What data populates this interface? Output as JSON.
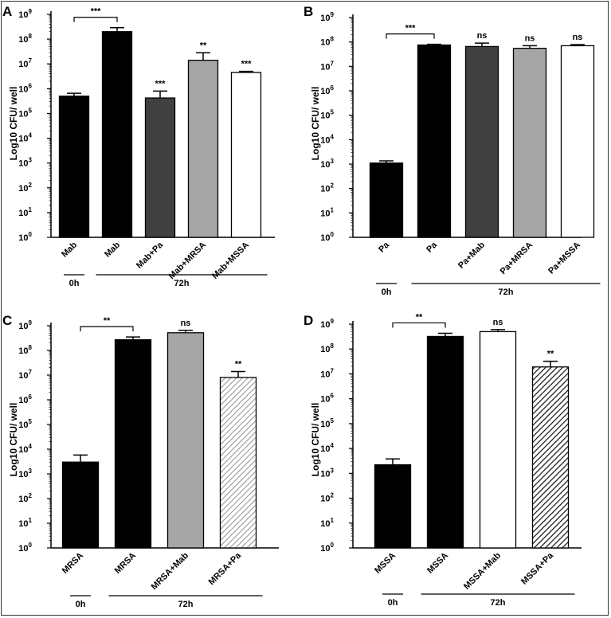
{
  "colors": {
    "black": "#000000",
    "darkgray": "#404040",
    "lightgray": "#a6a6a6",
    "white": "#ffffff"
  },
  "chart_data": [
    {
      "panel": "A",
      "type": "bar",
      "scale": "log10",
      "ylabel": "Log10 CFU/ well",
      "ylim": [
        1,
        1000000000
      ],
      "ytick_exponents": [
        0,
        1,
        2,
        3,
        4,
        5,
        6,
        7,
        8,
        9
      ],
      "categories": [
        "Mab",
        "Mab",
        "Mab+Pa",
        "Mab+MRSA",
        "Mab+MSSA"
      ],
      "values": [
        500000,
        200000000,
        420000,
        14000000,
        4500000
      ],
      "errors": [
        650000,
        290000000,
        800000,
        28000000,
        5000000
      ],
      "fills": [
        "black",
        "black",
        "darkgray",
        "lightgray",
        "white"
      ],
      "significance": [
        "",
        "***",
        "***",
        "**",
        "***"
      ],
      "groups": [
        {
          "label": "0h",
          "from": 0,
          "to": 0
        },
        {
          "label": "72h",
          "from": 1,
          "to": 4
        }
      ]
    },
    {
      "panel": "B",
      "type": "bar",
      "scale": "log10",
      "ylabel": "Log10 CFU/ well",
      "ylim": [
        1,
        1000000000
      ],
      "ytick_exponents": [
        0,
        1,
        2,
        3,
        4,
        5,
        6,
        7,
        8,
        9
      ],
      "categories": [
        "Pa",
        "Pa",
        "Pa+Mab",
        "Pa+MRSA",
        "Pa+MSSA"
      ],
      "values": [
        1100,
        75000000,
        65000000,
        55000000,
        70000000
      ],
      "errors": [
        1350,
        80000000,
        90000000,
        70000000,
        78000000
      ],
      "fills": [
        "black",
        "black",
        "darkgray",
        "lightgray",
        "white"
      ],
      "significance": [
        "",
        "***",
        "ns",
        "ns",
        "ns"
      ],
      "groups": [
        {
          "label": "0h",
          "from": 0,
          "to": 0
        },
        {
          "label": "72h",
          "from": 1,
          "to": 4
        }
      ]
    },
    {
      "panel": "C",
      "type": "bar",
      "scale": "log10",
      "ylabel": "Log10 CFU/ well",
      "ylim": [
        1,
        1000000000
      ],
      "ytick_exponents": [
        0,
        1,
        2,
        3,
        4,
        5,
        6,
        7,
        8,
        9
      ],
      "categories": [
        "MRSA",
        "MRSA",
        "MRSA+Mab",
        "MRSA+Pa"
      ],
      "values": [
        3000,
        270000000,
        520000000,
        8000000
      ],
      "errors": [
        5800,
        350000000,
        650000000,
        14000000
      ],
      "fills": [
        "black",
        "black",
        "lightgray",
        "hatch-gray"
      ],
      "significance": [
        "",
        "**",
        "ns",
        "**"
      ],
      "groups": [
        {
          "label": "0h",
          "from": 0,
          "to": 0
        },
        {
          "label": "72h",
          "from": 1,
          "to": 3
        }
      ]
    },
    {
      "panel": "D",
      "type": "bar",
      "scale": "log10",
      "ylabel": "Log10 CFU/ well",
      "ylim": [
        1,
        1000000000
      ],
      "ytick_exponents": [
        0,
        1,
        2,
        3,
        4,
        5,
        6,
        7,
        8,
        9
      ],
      "categories": [
        "MSSA",
        "MSSA",
        "MSSA+Mab",
        "MSSA+Pa"
      ],
      "values": [
        2200,
        320000000,
        500000000,
        19000000
      ],
      "errors": [
        3800,
        430000000,
        600000000,
        32000000
      ],
      "fills": [
        "black",
        "black",
        "white",
        "hatch-black"
      ],
      "significance": [
        "",
        "**",
        "ns",
        "**"
      ],
      "groups": [
        {
          "label": "0h",
          "from": 0,
          "to": 0
        },
        {
          "label": "72h",
          "from": 1,
          "to": 3
        }
      ]
    }
  ]
}
